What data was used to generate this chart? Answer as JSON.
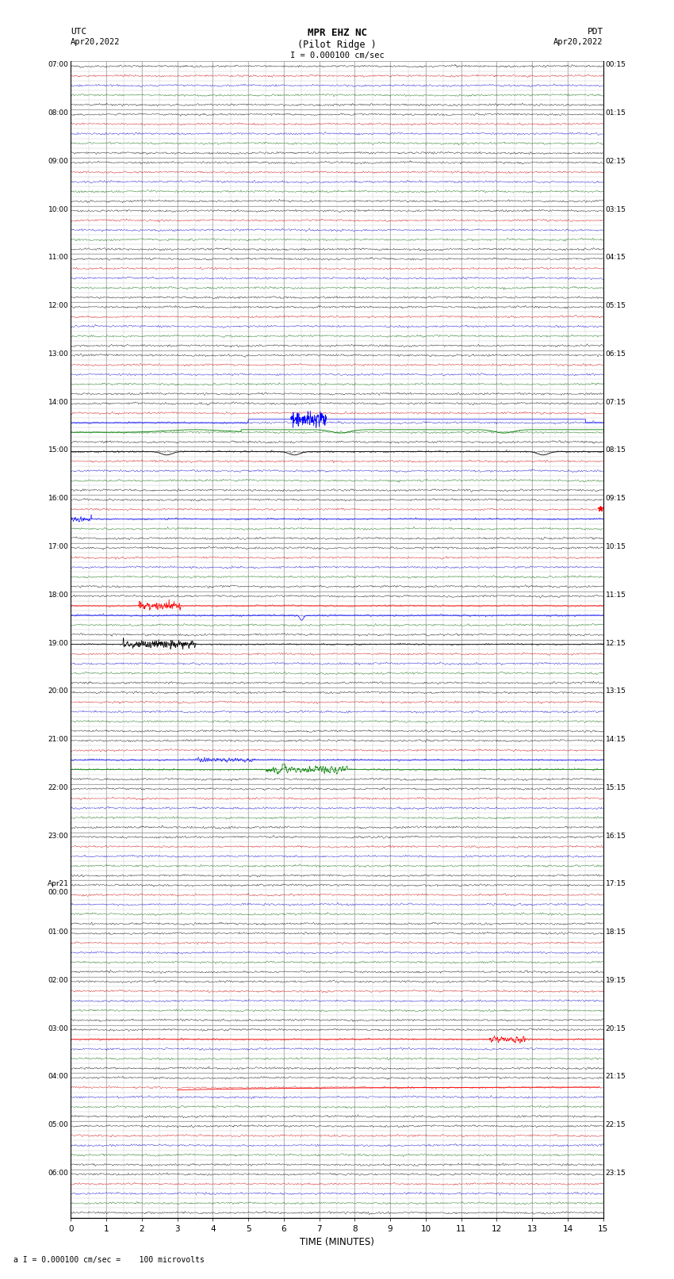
{
  "title_line1": "MPR EHZ NC",
  "title_line2": "(Pilot Ridge )",
  "scale_label": "I = 0.000100 cm/sec",
  "left_label": "UTC\nApr20,2022",
  "right_label": "PDT\nApr20,2022",
  "bottom_label": "a I = 0.000100 cm/sec =    100 microvolts",
  "xlabel": "TIME (MINUTES)",
  "utc_times": [
    "07:00",
    "08:00",
    "09:00",
    "10:00",
    "11:00",
    "12:00",
    "13:00",
    "14:00",
    "15:00",
    "16:00",
    "17:00",
    "18:00",
    "19:00",
    "20:00",
    "21:00",
    "22:00",
    "23:00",
    "Apr21\n00:00",
    "01:00",
    "02:00",
    "03:00",
    "04:00",
    "05:00",
    "06:00"
  ],
  "pdt_times": [
    "00:15",
    "01:15",
    "02:15",
    "03:15",
    "04:15",
    "05:15",
    "06:15",
    "07:15",
    "08:15",
    "09:15",
    "10:15",
    "11:15",
    "12:15",
    "13:15",
    "14:15",
    "15:15",
    "16:15",
    "17:15",
    "18:15",
    "19:15",
    "20:15",
    "21:15",
    "22:15",
    "23:15"
  ],
  "n_rows": 24,
  "n_minutes": 15,
  "bg_color": "#ffffff",
  "grid_major_color": "#888888",
  "grid_minor_color": "#bbbbbb",
  "fig_width": 8.5,
  "fig_height": 16.13,
  "subtraces_per_row": 5,
  "subtrace_colors": [
    "#000000",
    "#cc0000",
    "#0000cc",
    "#006600",
    "#000000"
  ]
}
